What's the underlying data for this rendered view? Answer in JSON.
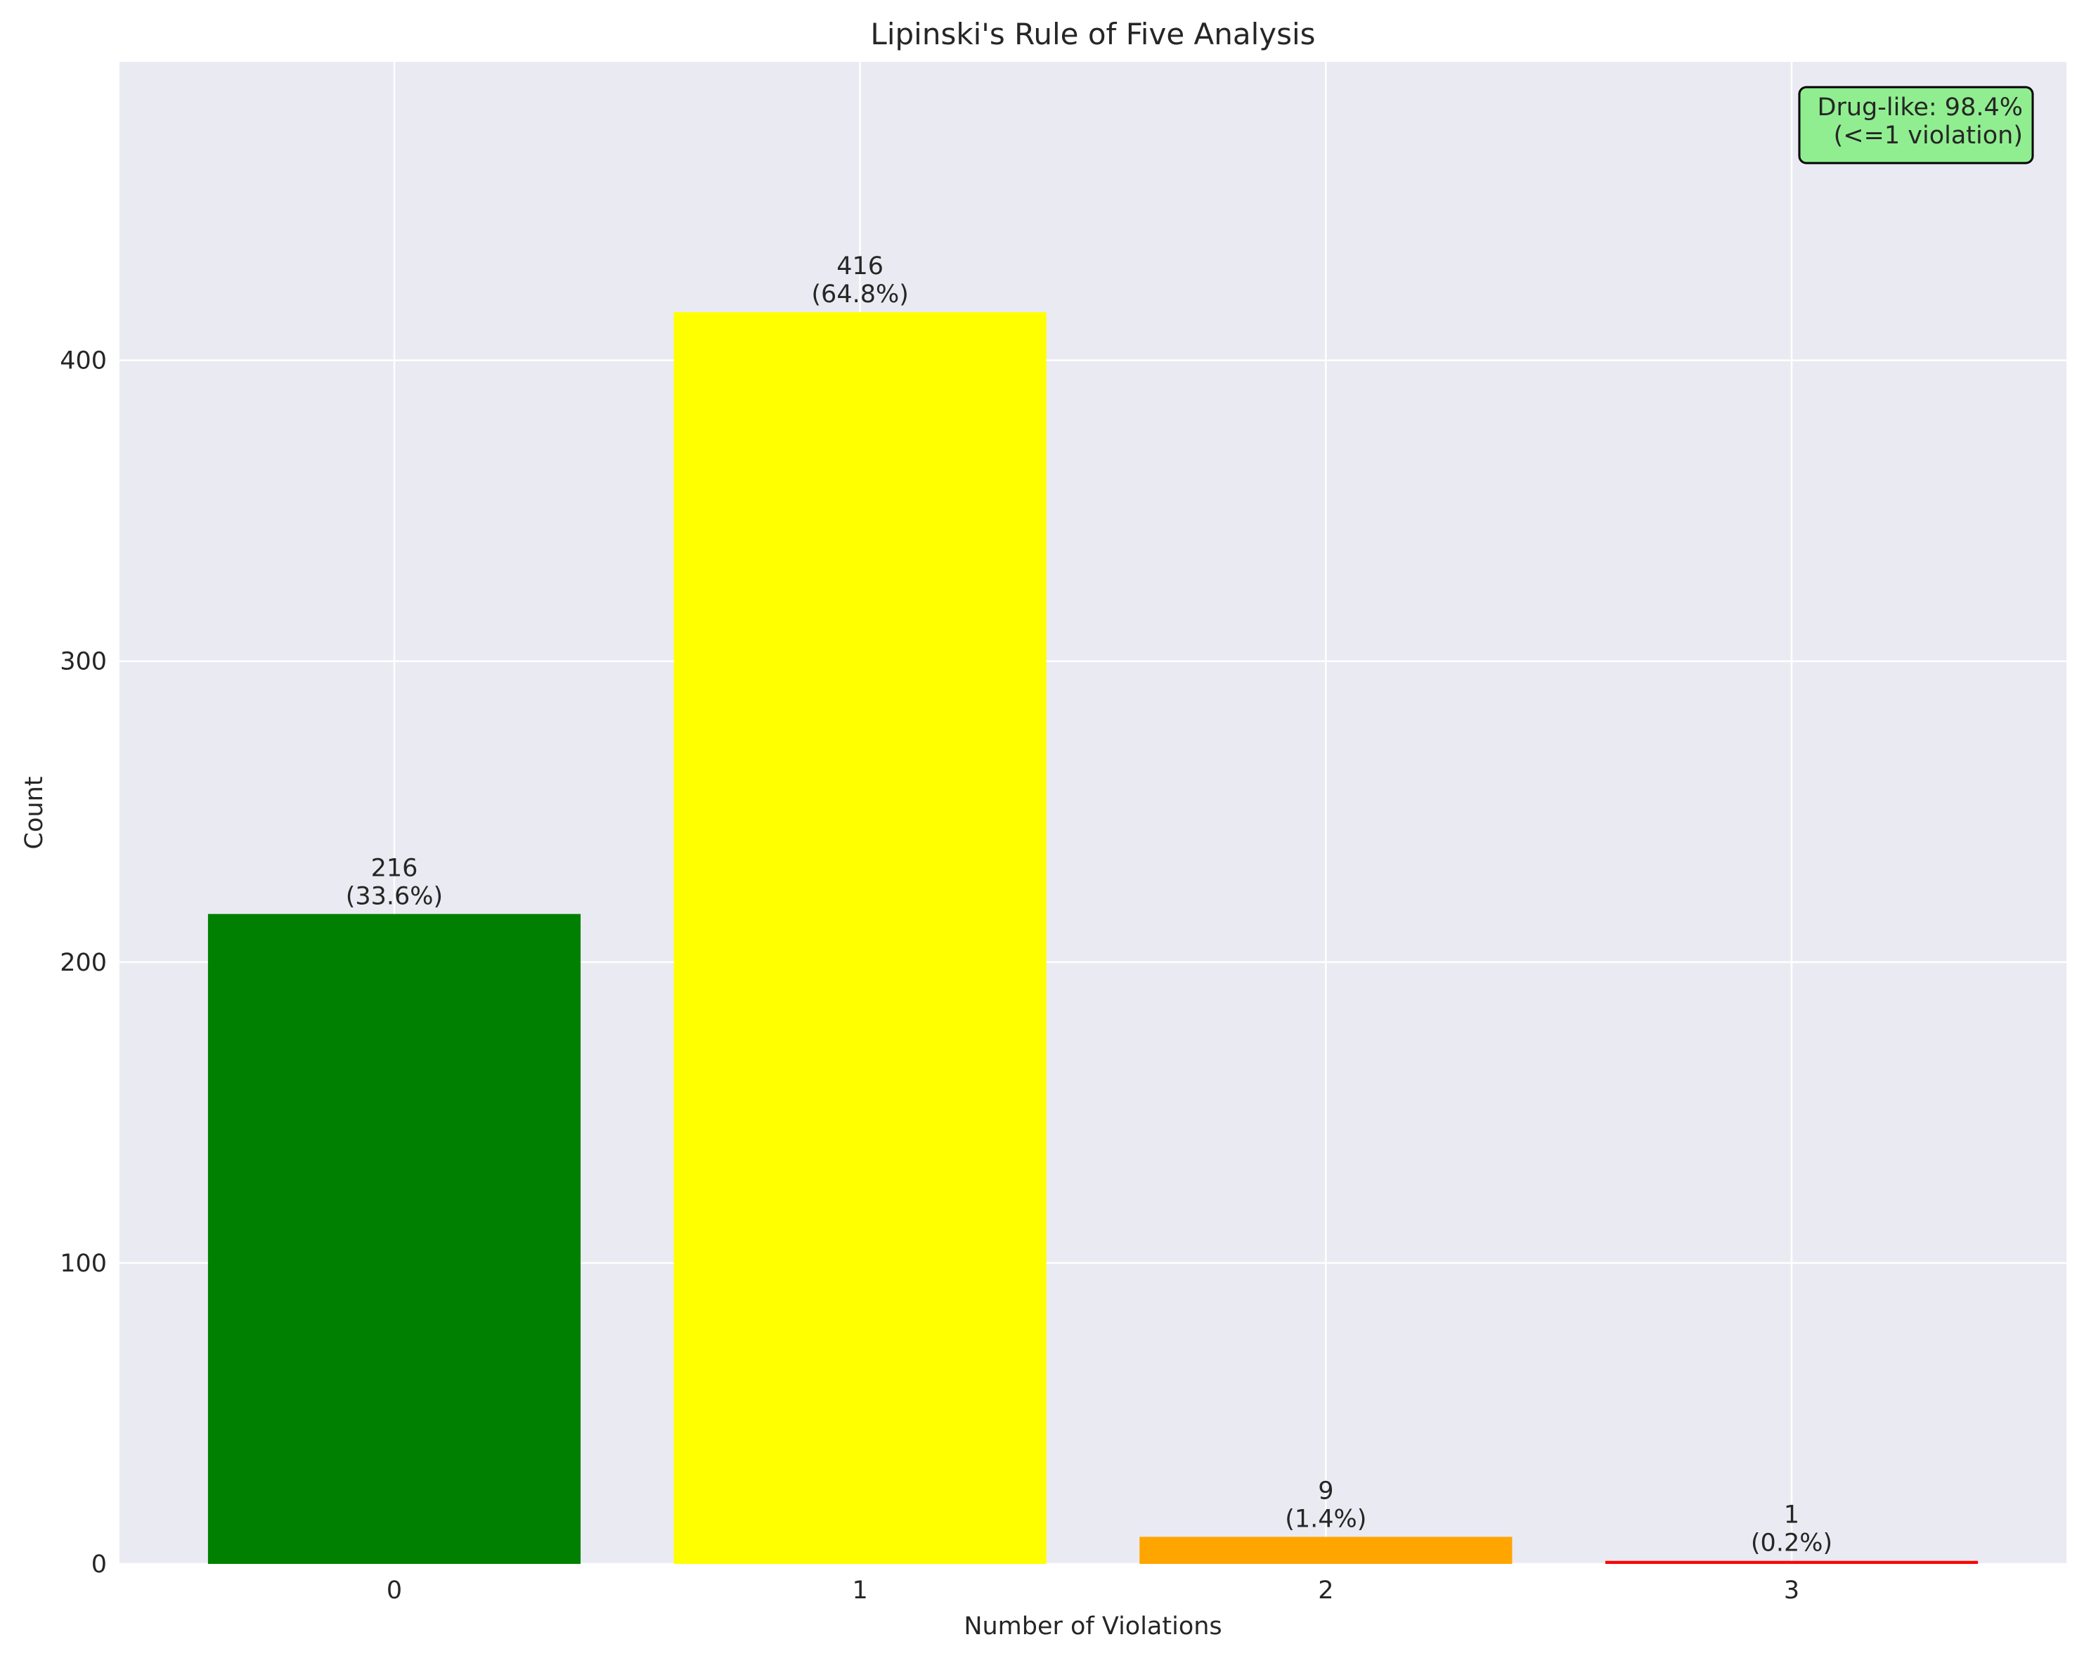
{
  "chart_data": {
    "type": "bar",
    "title": "Lipinski's Rule of Five Analysis",
    "xlabel": "Number of Violations",
    "ylabel": "Count",
    "categories": [
      "0",
      "1",
      "2",
      "3"
    ],
    "values": [
      216,
      416,
      9,
      1
    ],
    "data_labels": [
      [
        "216",
        "(33.6%)"
      ],
      [
        "416",
        "(64.8%)"
      ],
      [
        "9",
        "(1.4%)"
      ],
      [
        "1",
        "(0.2%)"
      ]
    ],
    "bar_colors": [
      "#008000",
      "#ffff00",
      "#ffa500",
      "#ff0000"
    ],
    "ylim": [
      0,
      499.2
    ],
    "yticks": [
      0,
      100,
      200,
      300,
      400
    ],
    "grid": true,
    "annotation": {
      "lines": [
        "Drug-like: 98.4%",
        "(<=1 violation)"
      ],
      "placement": "top-right",
      "background": "#90ee90"
    },
    "style": {
      "plot_background": "#eaeaf2",
      "grid_color": "#ffffff",
      "text_color": "#262626"
    }
  }
}
